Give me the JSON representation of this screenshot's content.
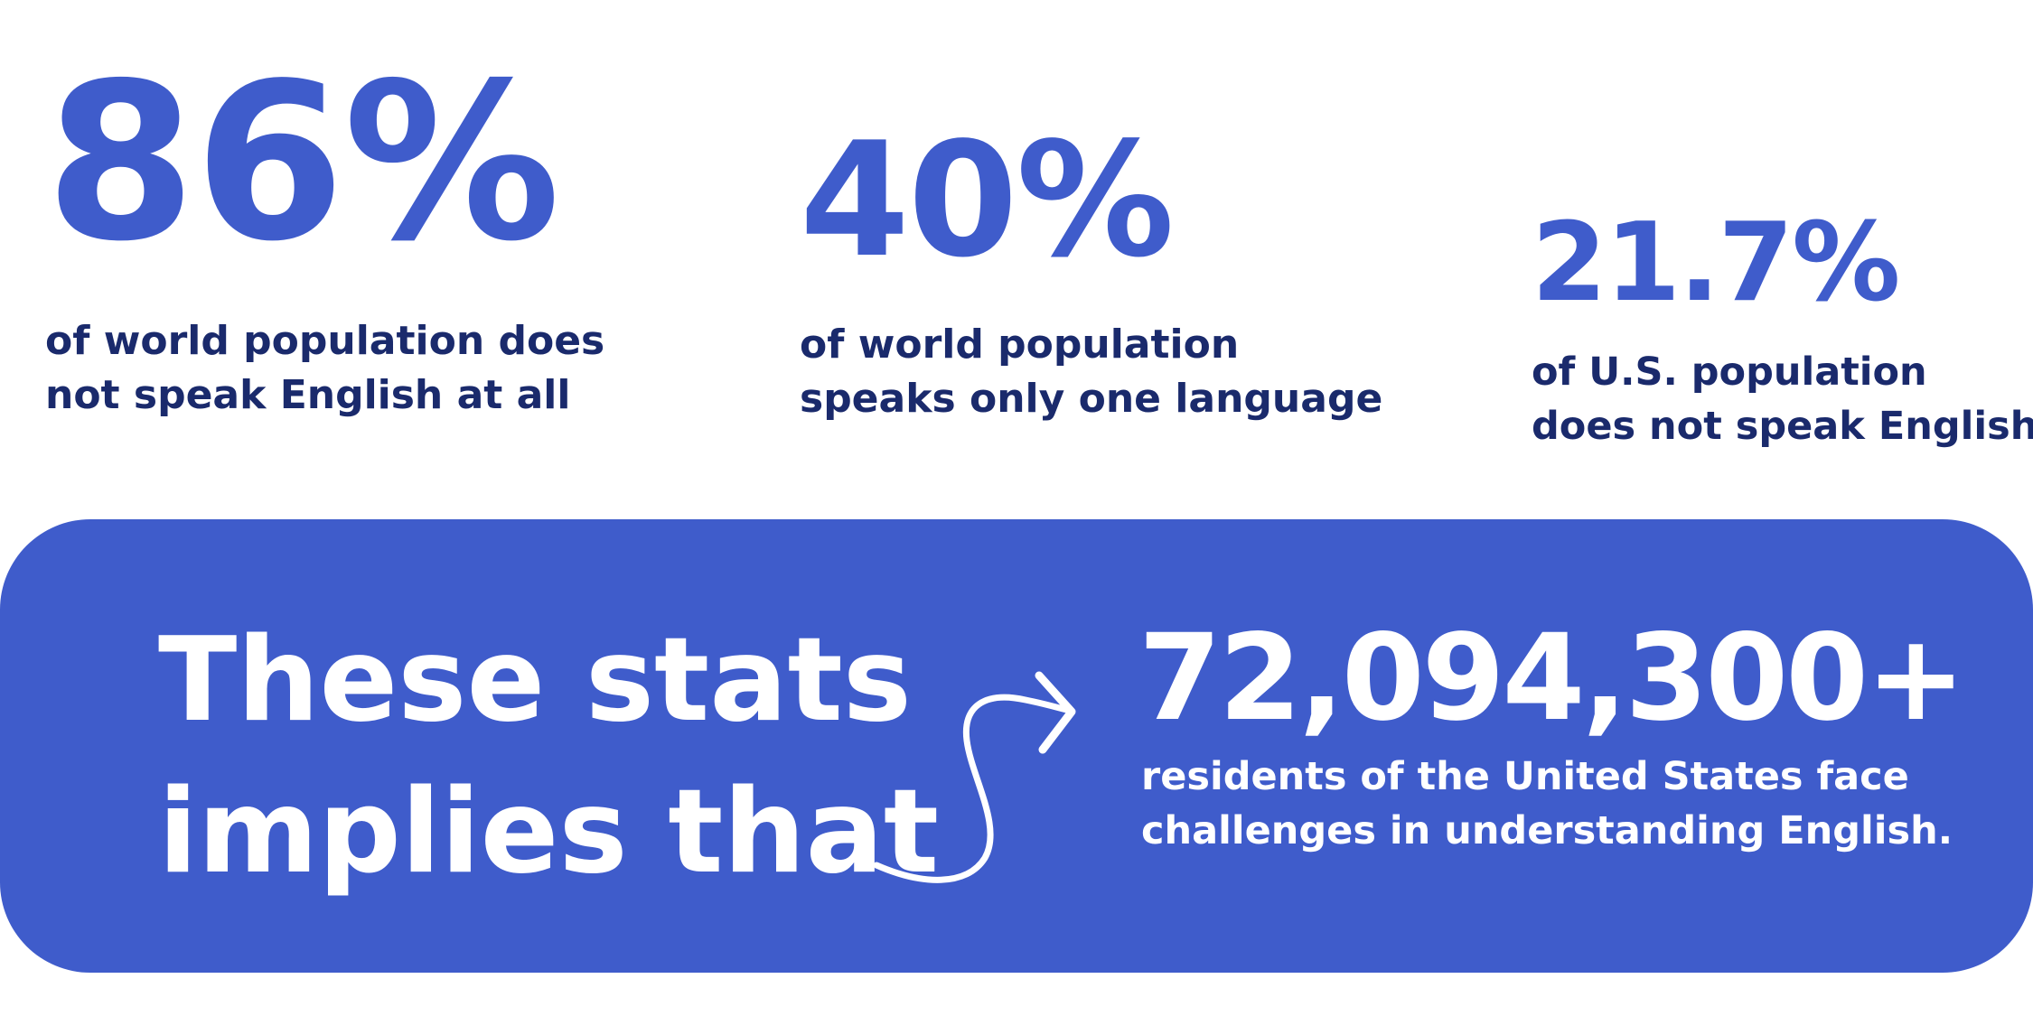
{
  "stats": [
    {
      "value": "86%",
      "description_line1": "of world population does",
      "description_line2": "not speak English at all"
    },
    {
      "value": "40%",
      "description_line1": "of world population",
      "description_line2": "speaks only one language"
    },
    {
      "value": "21.7%",
      "description_line1": "of U.S. population",
      "description_line2": "does not speak English"
    }
  ],
  "banner": {
    "heading_line1": "These stats",
    "heading_line2": "implies that",
    "arrow_icon": "curved-arrow-icon",
    "number": "72,094,300+",
    "description_line1": "residents of the United States face",
    "description_line2": "challenges in understanding English."
  },
  "colors": {
    "accent": "#3f5ccb",
    "text_dark": "#1a2a6c",
    "background": "#ffffff",
    "banner_text": "#ffffff"
  }
}
